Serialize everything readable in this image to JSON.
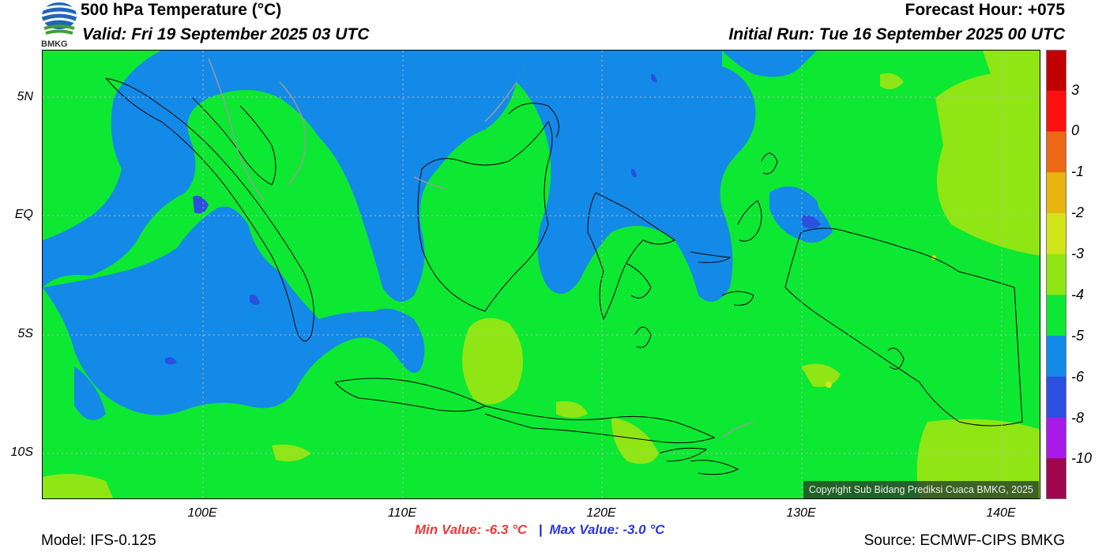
{
  "header": {
    "title": "500 hPa Temperature (°C)",
    "valid": "Valid: Fri 19 September 2025 03 UTC",
    "forecast_hour": "Forecast Hour: +075",
    "initial_run": "Initial Run: Tue 16 September 2025 00 UTC",
    "logo_text": "BMKG"
  },
  "map": {
    "lat_labels": [
      "5N",
      "EQ",
      "5S",
      "10S"
    ],
    "lon_labels": [
      "100E",
      "110E",
      "120E",
      "130E",
      "140E"
    ],
    "copyright": "Copyright Sub Bidang Prediksi Cuaca BMKG, 2025"
  },
  "colorbar": {
    "labels": [
      "3",
      "0",
      "-1",
      "-2",
      "-3",
      "-4",
      "-5",
      "-6",
      "-8",
      "-10"
    ],
    "colors": [
      "#c20000",
      "#ff1010",
      "#ec6a16",
      "#e8b410",
      "#d2e41a",
      "#8fe614",
      "#0de832",
      "#138ae8",
      "#2b50e0",
      "#a81ae8",
      "#a0064e"
    ]
  },
  "stats": {
    "min": "Min Value: -6.3 °C",
    "max": "Max Value: -3.0 °C",
    "separator": "|"
  },
  "footer": {
    "model": "Model: IFS-0.125",
    "source": "Source: ECMWF-CIPS BMKG"
  },
  "palette": {
    "green": "#0de832",
    "blue": "#138ae8",
    "dark_blue": "#2b50e0",
    "lime": "#8fe614"
  }
}
